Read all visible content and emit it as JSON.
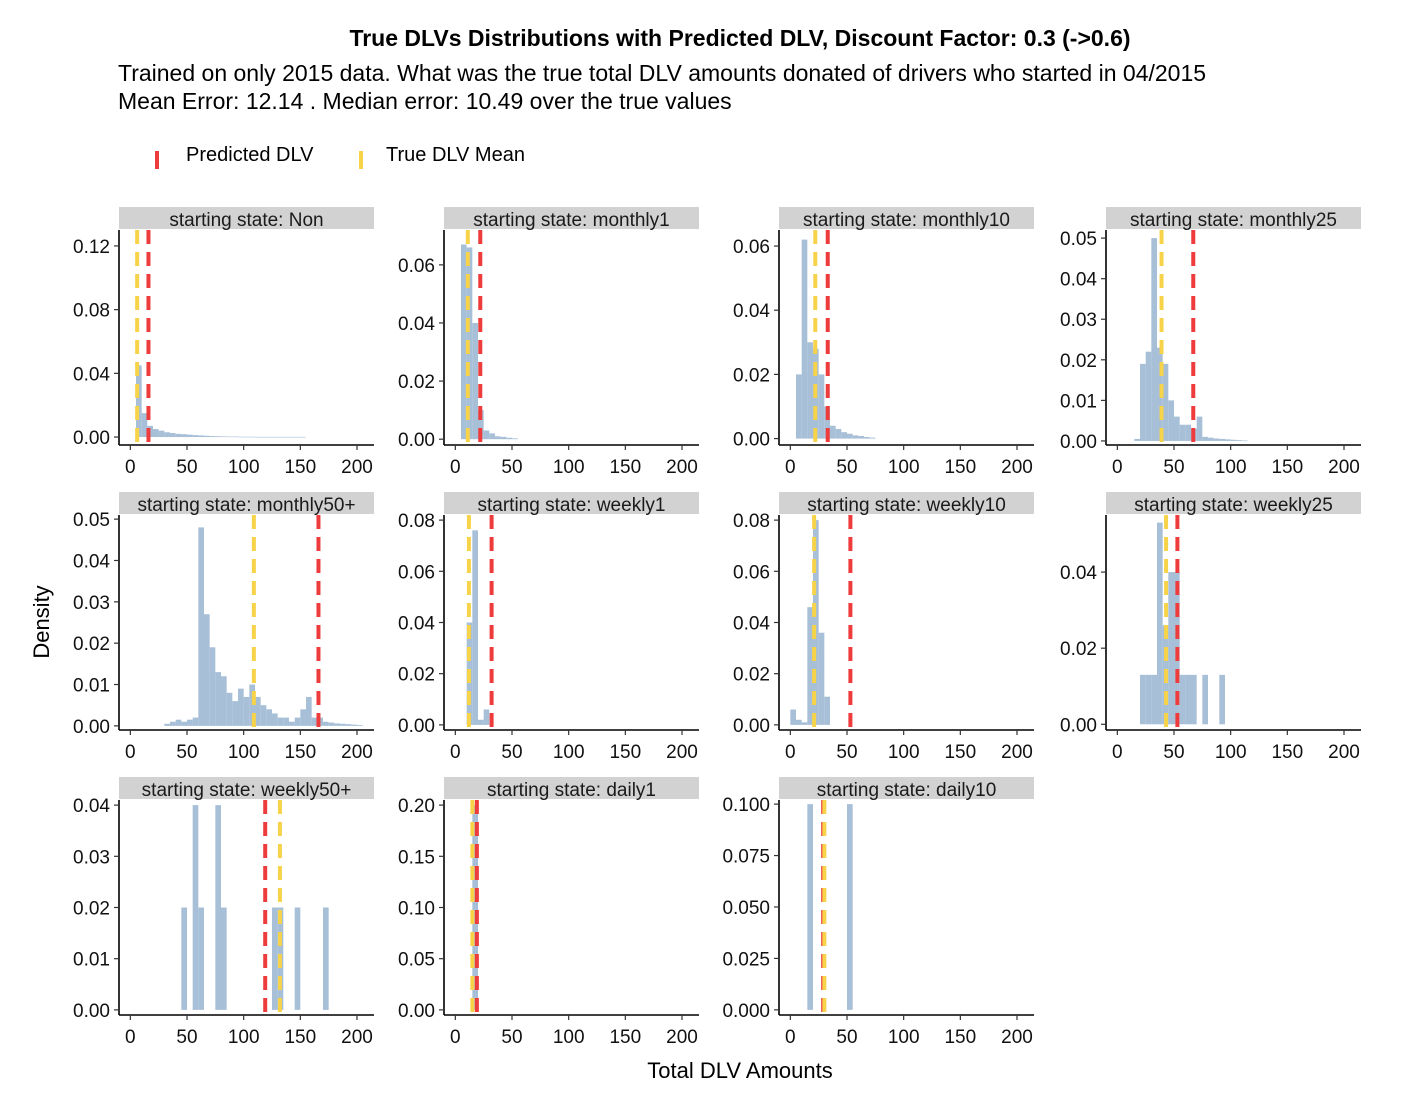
{
  "title": "True DLVs Distributions with Predicted DLV, Discount Factor: 0.3 (->0.6)",
  "subtitle_line1": "Trained on only 2015 data. What was the true total DLV amounts donated of drivers who started in 04/2015",
  "subtitle_line2": "Mean Error: 12.14 . Median error: 10.49 over the true values",
  "legend": [
    {
      "label": "Predicted DLV",
      "color": "#ee3b3b"
    },
    {
      "label": "True DLV Mean",
      "color": "#f7d34a"
    }
  ],
  "colors": {
    "bars": "#a7bfd7",
    "strip": "#d2d2d2"
  },
  "chart_data": {
    "type": "bar",
    "title": "True DLVs Distributions with Predicted DLV, Discount Factor: 0.3 (->0.6)",
    "xlabel": "Total DLV Amounts",
    "ylabel": "Density",
    "xlim": [
      -10,
      215
    ],
    "x_ticks": [
      0,
      50,
      100,
      150,
      200
    ],
    "bin_width": 5,
    "facets": [
      {
        "label": "starting  state: Non",
        "ylim": [
          -0.005,
          0.13
        ],
        "y_ticks": [
          0,
          0.04,
          0.08,
          0.12
        ],
        "y_tick_labels": [
          "0.00",
          "0.04",
          "0.08",
          "0.12"
        ],
        "predicted": 16,
        "true_mean": 6,
        "bin_starts": [
          5,
          10,
          15,
          20,
          25,
          30,
          35,
          40,
          45,
          50,
          55,
          60,
          65,
          70,
          75,
          80,
          85,
          90,
          95,
          100,
          105,
          110,
          115,
          120,
          125,
          130,
          135,
          140,
          145,
          150
        ],
        "densities": [
          0.045,
          0.015,
          0.007,
          0.005,
          0.004,
          0.003,
          0.0025,
          0.002,
          0.0018,
          0.0015,
          0.0012,
          0.001,
          0.0008,
          0.0006,
          0.0005,
          0.0004,
          0.0003,
          0.0003,
          0.0002,
          0.0002,
          0.0002,
          0.0001,
          0.0001,
          0.0001,
          0.0001,
          0.0001,
          0.0001,
          0.0001,
          0.0001,
          0.0001
        ]
      },
      {
        "label": "starting  state: monthly1",
        "ylim": [
          -0.002,
          0.072
        ],
        "y_ticks": [
          0,
          0.02,
          0.04,
          0.06
        ],
        "y_tick_labels": [
          "0.00",
          "0.02",
          "0.04",
          "0.06"
        ],
        "predicted": 22,
        "true_mean": 11,
        "bin_starts": [
          5,
          10,
          15,
          20,
          25,
          30,
          35,
          40,
          45,
          50
        ],
        "densities": [
          0.067,
          0.066,
          0.04,
          0.01,
          0.003,
          0.002,
          0.001,
          0.0008,
          0.0005,
          0.0003
        ]
      },
      {
        "label": "starting  state: monthly10",
        "ylim": [
          -0.002,
          0.065
        ],
        "y_ticks": [
          0,
          0.02,
          0.04,
          0.06
        ],
        "y_tick_labels": [
          "0.00",
          "0.02",
          "0.04",
          "0.06"
        ],
        "predicted": 33,
        "true_mean": 22,
        "bin_starts": [
          5,
          10,
          15,
          20,
          25,
          30,
          35,
          40,
          45,
          50,
          55,
          60,
          65,
          70
        ],
        "densities": [
          0.02,
          0.062,
          0.03,
          0.028,
          0.02,
          0.01,
          0.004,
          0.003,
          0.002,
          0.0015,
          0.001,
          0.0008,
          0.0005,
          0.0003
        ]
      },
      {
        "label": "starting  state: monthly25",
        "ylim": [
          -0.001,
          0.052
        ],
        "y_ticks": [
          0,
          0.01,
          0.02,
          0.03,
          0.04,
          0.05
        ],
        "y_tick_labels": [
          "0.00",
          "0.01",
          "0.02",
          "0.03",
          "0.04",
          "0.05"
        ],
        "predicted": 67,
        "true_mean": 39,
        "bin_starts": [
          15,
          20,
          25,
          30,
          35,
          40,
          45,
          50,
          55,
          60,
          65,
          70,
          75,
          80,
          85,
          90,
          95,
          100,
          105,
          110
        ],
        "densities": [
          0.0005,
          0.019,
          0.022,
          0.05,
          0.023,
          0.019,
          0.01,
          0.006,
          0.004,
          0.004,
          0.003,
          0.006,
          0.001,
          0.0008,
          0.0006,
          0.0005,
          0.0004,
          0.0003,
          0.0002,
          0.0001
        ]
      },
      {
        "label": "starting  state: monthly50+",
        "ylim": [
          -0.001,
          0.051
        ],
        "y_ticks": [
          0,
          0.01,
          0.02,
          0.03,
          0.04,
          0.05
        ],
        "y_tick_labels": [
          "0.00",
          "0.01",
          "0.02",
          "0.03",
          "0.04",
          "0.05"
        ],
        "predicted": 166,
        "true_mean": 109,
        "bin_starts": [
          30,
          35,
          40,
          45,
          50,
          55,
          60,
          65,
          70,
          75,
          80,
          85,
          90,
          95,
          100,
          105,
          110,
          115,
          120,
          125,
          130,
          135,
          140,
          145,
          150,
          155,
          160,
          165,
          170,
          175,
          180,
          185,
          190,
          195,
          200
        ],
        "densities": [
          0.0005,
          0.001,
          0.0015,
          0.001,
          0.0015,
          0.002,
          0.048,
          0.027,
          0.019,
          0.013,
          0.012,
          0.008,
          0.006,
          0.009,
          0.007,
          0.01,
          0.007,
          0.005,
          0.004,
          0.003,
          0.002,
          0.002,
          0.001,
          0.002,
          0.004,
          0.007,
          0.002,
          0.002,
          0.001,
          0.0008,
          0.0006,
          0.0005,
          0.0004,
          0.0003,
          0.0002
        ]
      },
      {
        "label": "starting  state: weekly1",
        "ylim": [
          -0.002,
          0.082
        ],
        "y_ticks": [
          0,
          0.02,
          0.04,
          0.06,
          0.08
        ],
        "y_tick_labels": [
          "0.00",
          "0.02",
          "0.04",
          "0.06",
          "0.08"
        ],
        "predicted": 32,
        "true_mean": 12,
        "bin_starts": [
          10,
          15,
          20,
          25
        ],
        "densities": [
          0.04,
          0.076,
          0.002,
          0.006
        ]
      },
      {
        "label": "starting  state: weekly10",
        "ylim": [
          -0.002,
          0.082
        ],
        "y_ticks": [
          0,
          0.02,
          0.04,
          0.06,
          0.08
        ],
        "y_tick_labels": [
          "0.00",
          "0.02",
          "0.04",
          "0.06",
          "0.08"
        ],
        "predicted": 53,
        "true_mean": 21,
        "bin_starts": [
          0,
          5,
          10,
          15,
          20,
          25,
          30
        ],
        "densities": [
          0.006,
          0.002,
          0.001,
          0.046,
          0.08,
          0.036,
          0.011
        ]
      },
      {
        "label": "starting  state: weekly25",
        "ylim": [
          -0.0015,
          0.055
        ],
        "y_ticks": [
          0,
          0.02,
          0.04
        ],
        "y_tick_labels": [
          "0.00",
          "0.02",
          "0.04"
        ],
        "predicted": 53,
        "true_mean": 43,
        "bin_starts": [
          20,
          25,
          30,
          35,
          40,
          45,
          50,
          55,
          60,
          65,
          70,
          75,
          80,
          85,
          90
        ],
        "densities": [
          0.013,
          0.013,
          0.013,
          0.053,
          0.026,
          0.04,
          0.04,
          0.013,
          0.013,
          0.013,
          0.0,
          0.013,
          0.0,
          0.0,
          0.013
        ]
      },
      {
        "label": "starting  state: weekly50+",
        "ylim": [
          -0.001,
          0.041
        ],
        "y_ticks": [
          0,
          0.01,
          0.02,
          0.03,
          0.04
        ],
        "y_tick_labels": [
          "0.00",
          "0.01",
          "0.02",
          "0.03",
          "0.04"
        ],
        "predicted": 119,
        "true_mean": 132,
        "bin_starts": [
          45,
          50,
          55,
          60,
          65,
          70,
          75,
          80,
          85,
          90,
          95,
          100,
          105,
          110,
          115,
          120,
          125,
          130,
          135,
          140,
          145,
          150,
          155,
          160,
          165,
          170
        ],
        "densities": [
          0.02,
          0.0,
          0.04,
          0.02,
          0.0,
          0.0,
          0.04,
          0.02,
          0.0,
          0.0,
          0.0,
          0.0,
          0.0,
          0.0,
          0.0,
          0.0,
          0.02,
          0.02,
          0.0,
          0.0,
          0.02,
          0.0,
          0.0,
          0.0,
          0.0,
          0.02
        ]
      },
      {
        "label": "starting  state: daily1",
        "ylim": [
          -0.005,
          0.205
        ],
        "y_ticks": [
          0,
          0.05,
          0.1,
          0.15,
          0.2
        ],
        "y_tick_labels": [
          "0.00",
          "0.05",
          "0.10",
          "0.15",
          "0.20"
        ],
        "predicted": 19,
        "true_mean": 15,
        "bin_starts": [
          15
        ],
        "densities": [
          0.2
        ]
      },
      {
        "label": "starting  state: daily10",
        "ylim": [
          -0.0025,
          0.102
        ],
        "y_ticks": [
          0,
          0.025,
          0.05,
          0.075,
          0.1
        ],
        "y_tick_labels": [
          "0.000",
          "0.025",
          "0.050",
          "0.075",
          "0.100"
        ],
        "predicted": 29,
        "true_mean": 30,
        "bin_starts": [
          15,
          50
        ],
        "densities": [
          0.1,
          0.1
        ]
      }
    ]
  }
}
